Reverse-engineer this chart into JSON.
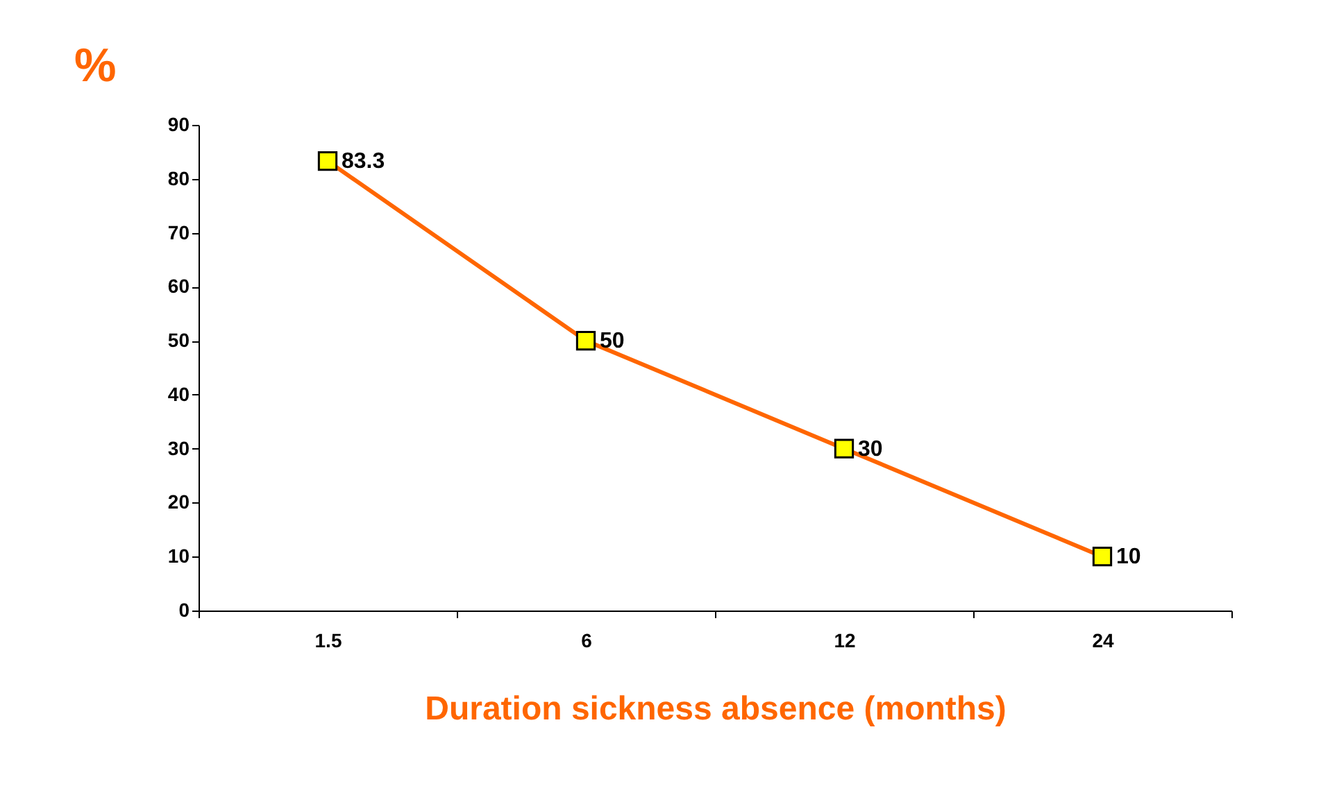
{
  "chart_data": {
    "type": "line",
    "xlabel": "Duration sickness absence (months)",
    "ylabel": "%",
    "categories": [
      "1.5",
      "6",
      "12",
      "24"
    ],
    "series": [
      {
        "color": "#ff6600",
        "values": [
          83.3,
          50,
          30,
          10
        ]
      }
    ],
    "marker": "square",
    "ylim": [
      0,
      90
    ],
    "yticks": [
      0,
      10,
      20,
      30,
      40,
      50,
      60,
      70,
      80,
      90
    ],
    "data_labels": true,
    "grid": false,
    "legend": false
  }
}
